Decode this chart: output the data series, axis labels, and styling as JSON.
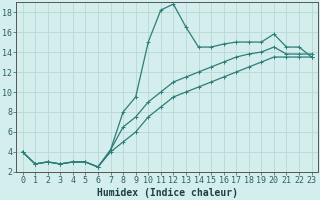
{
  "xlabel": "Humidex (Indice chaleur)",
  "bg_color": "#d4eeed",
  "line_color": "#2d7d78",
  "grid_color": "#b8d8d5",
  "xlim": [
    -0.5,
    23.5
  ],
  "ylim": [
    2,
    19
  ],
  "xticks": [
    0,
    1,
    2,
    3,
    4,
    5,
    6,
    7,
    8,
    9,
    10,
    11,
    12,
    13,
    14,
    15,
    16,
    17,
    18,
    19,
    20,
    21,
    22,
    23
  ],
  "yticks": [
    2,
    4,
    6,
    8,
    10,
    12,
    14,
    16,
    18
  ],
  "line1_x": [
    0,
    1,
    2,
    3,
    4,
    5,
    6,
    7,
    8,
    9,
    10,
    11,
    12,
    13,
    14,
    15,
    16,
    17,
    18,
    19,
    20,
    21,
    22,
    23
  ],
  "line1_y": [
    4.0,
    2.8,
    3.0,
    2.8,
    3.0,
    3.0,
    2.5,
    4.2,
    8.0,
    9.5,
    15.0,
    18.2,
    18.8,
    16.5,
    14.5,
    14.5,
    14.8,
    15.0,
    15.0,
    15.0,
    15.8,
    14.5,
    14.5,
    13.5
  ],
  "line2_x": [
    0,
    1,
    2,
    3,
    4,
    5,
    6,
    7,
    8,
    9,
    10,
    11,
    12,
    13,
    14,
    15,
    16,
    17,
    18,
    19,
    20,
    21,
    22,
    23
  ],
  "line2_y": [
    4.0,
    2.8,
    3.0,
    2.8,
    3.0,
    3.0,
    2.5,
    4.0,
    5.0,
    6.0,
    7.5,
    8.5,
    9.5,
    10.0,
    10.5,
    11.0,
    11.5,
    12.0,
    12.5,
    13.0,
    13.5,
    13.5,
    13.5,
    13.5
  ],
  "line3_x": [
    0,
    1,
    2,
    3,
    4,
    5,
    6,
    7,
    8,
    9,
    10,
    11,
    12,
    13,
    14,
    15,
    16,
    17,
    18,
    19,
    20,
    21,
    22,
    23
  ],
  "line3_y": [
    4.0,
    2.8,
    3.0,
    2.8,
    3.0,
    3.0,
    2.5,
    4.2,
    6.5,
    7.5,
    9.0,
    10.0,
    11.0,
    11.5,
    12.0,
    12.5,
    13.0,
    13.5,
    13.8,
    14.0,
    14.5,
    13.8,
    13.8,
    13.8
  ],
  "marker": "+",
  "markersize": 3,
  "linewidth": 0.9,
  "xlabel_fontsize": 7,
  "tick_fontsize": 6
}
